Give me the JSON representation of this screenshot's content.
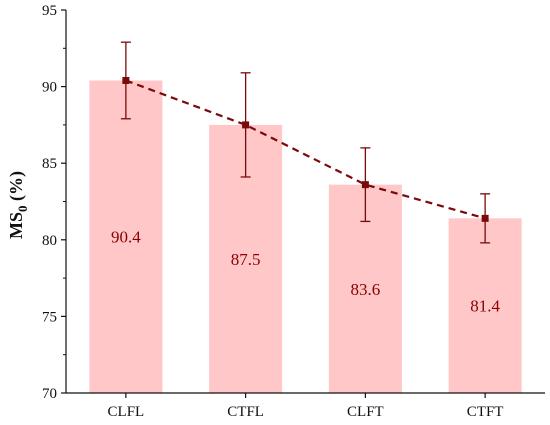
{
  "chart_data": {
    "type": "bar",
    "categories": [
      "CLFL",
      "CTFL",
      "CLFT",
      "CTFT"
    ],
    "values": [
      90.4,
      87.5,
      83.6,
      81.4
    ],
    "data_labels": [
      "90.4",
      "87.5",
      "83.6",
      "81.4"
    ],
    "error_bars": [
      {
        "low": 87.9,
        "high": 92.9
      },
      {
        "low": 84.1,
        "high": 90.9
      },
      {
        "low": 81.2,
        "high": 86.0
      },
      {
        "low": 79.8,
        "high": 83.0
      }
    ],
    "trend_line": {
      "style": "dashed",
      "marker": "square",
      "values": [
        90.4,
        87.5,
        83.6,
        81.4
      ]
    },
    "ylabel_main": "MS",
    "ylabel_sub": "0",
    "ylabel_unit": " (%)",
    "xlabel": "",
    "title": "",
    "ylim": [
      70,
      95
    ],
    "yticks": [
      "70",
      "75",
      "80",
      "85",
      "90",
      "95"
    ],
    "grid": false,
    "legend": "none",
    "colors": {
      "bar": "#ffc7c7",
      "line": "#7a0a0a",
      "error": "#7a0a0a",
      "data_label": "#8b0000",
      "axis": "#111111"
    }
  }
}
